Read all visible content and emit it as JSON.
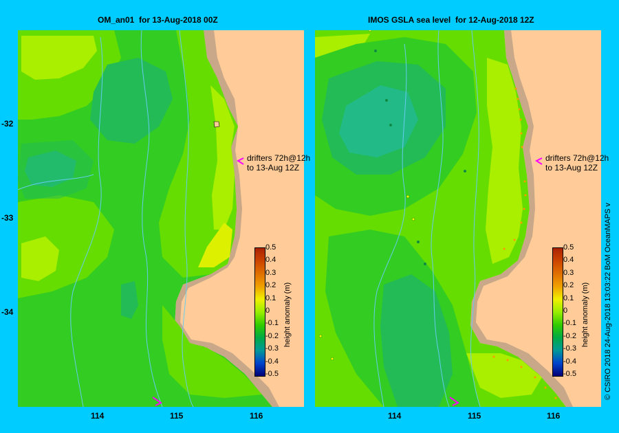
{
  "panels": {
    "left": {
      "title": "OM_an01  for 13-Aug-2018 00Z"
    },
    "right": {
      "title": "IMOS GSLA sea level  for 12-Aug-2018 12Z"
    }
  },
  "axes": {
    "x_ticks": [
      "114",
      "115",
      "116"
    ],
    "y_ticks": [
      "-32",
      "-33",
      "-34"
    ]
  },
  "colorbar": {
    "title": "height anomaly (m)",
    "labels": [
      "0.5",
      "0.4",
      "0.3",
      "0.2",
      "0.1",
      "0",
      "-0.1",
      "-0.2",
      "-0.3",
      "-0.4",
      "-0.5"
    ],
    "colors": [
      "#aa2200",
      "#cc4400",
      "#e07000",
      "#f0a000",
      "#f0f000",
      "#99ee00",
      "#33cc00",
      "#00aa44",
      "#009999",
      "#0044cc",
      "#000077"
    ]
  },
  "drifters": {
    "line1": "drifters 72h@12h",
    "line2": "to 13-Aug 12Z"
  },
  "credit": "© CSIRO 2018   24-Aug-2018 13:03:22 BoM OceanMAPS v",
  "colors": {
    "background": "#00ccff",
    "land": "#ffcc99",
    "coast": "#c8a888",
    "level_pos_02": "#ddf000",
    "level_pos_01": "#aaee00",
    "level_0": "#66dd00",
    "level_neg_01": "#33cc22",
    "level_neg_02": "#22bb55",
    "level_neg_03": "#22bb88",
    "drifter_arrow": "#ff00ff",
    "bathymetry": "#66ccee"
  }
}
